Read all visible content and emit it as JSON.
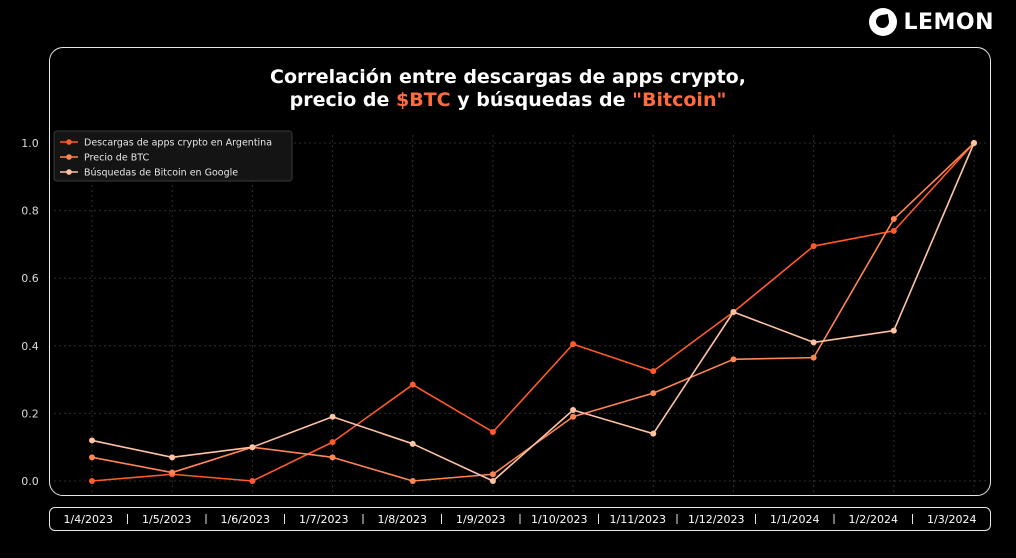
{
  "brand": {
    "logo_text": "LEMON",
    "logo_icon": "lemon-logo-icon"
  },
  "title": {
    "line1": "Correlación entre descargas de apps crypto,",
    "line2_prefix": "precio de ",
    "line2_accent1": "$BTC",
    "line2_middle": " y búsquedas de ",
    "line2_accent2": "\"Bitcoin\""
  },
  "colors": {
    "background": "#000000",
    "grid": "#2e2e2e",
    "axis_text": "#d9d9d9",
    "accent": "#ff6b3d"
  },
  "chart_data": {
    "type": "line",
    "categories": [
      "1/4/2023",
      "1/5/2023",
      "1/6/2023",
      "1/7/2023",
      "1/8/2023",
      "1/9/2023",
      "1/10/2023",
      "1/11/2023",
      "1/12/2023",
      "1/1/2024",
      "1/2/2024",
      "1/3/2024"
    ],
    "yticks": [
      "0.0",
      "0.2",
      "0.4",
      "0.6",
      "0.8",
      "1.0"
    ],
    "ylim": [
      0,
      1
    ],
    "grid": true,
    "legend_position": "top-left",
    "series": [
      {
        "name": "Descargas de apps crypto en Argentina",
        "color": "#ff5a2a",
        "values": [
          0.0,
          0.02,
          0.0,
          0.115,
          0.285,
          0.145,
          0.405,
          0.325,
          0.5,
          0.695,
          0.74,
          1.0
        ]
      },
      {
        "name": "Precio de BTC",
        "color": "#ff8552",
        "values": [
          0.07,
          0.025,
          0.1,
          0.07,
          0.0,
          0.02,
          0.19,
          0.26,
          0.36,
          0.365,
          0.775,
          1.0
        ]
      },
      {
        "name": "Búsquedas de Bitcoin en Google",
        "color": "#ffc2a3",
        "values": [
          0.12,
          0.07,
          0.1,
          0.19,
          0.11,
          0.0,
          0.21,
          0.14,
          0.5,
          0.41,
          0.445,
          1.0
        ]
      }
    ]
  }
}
